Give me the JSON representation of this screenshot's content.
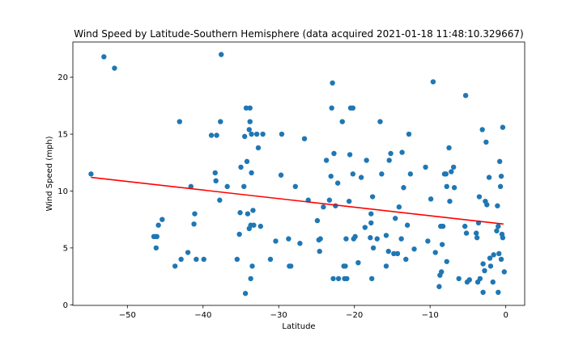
{
  "chart_data": {
    "type": "scatter",
    "title": "Wind Speed by Latitude-Southern Hemisphere (data acquired 2021-01-18 11:48:10.329667)",
    "xlabel": "Latitude",
    "ylabel": "Wind Speed (mph)",
    "xlim": [
      -57.2,
      2.5
    ],
    "ylim": [
      -0.05,
      23.1
    ],
    "xticks": [
      -50,
      -40,
      -30,
      -20,
      -10,
      0
    ],
    "yticks": [
      0,
      5,
      10,
      15,
      20
    ],
    "grid": false,
    "point_color": "#1f77b4",
    "line_color": "#ff0000",
    "regression": {
      "x": [
        -54.8,
        -0.3
      ],
      "y": [
        11.2,
        7.1
      ]
    },
    "points": [
      [
        -54.8,
        11.5
      ],
      [
        -53.1,
        21.8
      ],
      [
        -51.7,
        20.8
      ],
      [
        -46.5,
        6.0
      ],
      [
        -46.3,
        6.0
      ],
      [
        -46.2,
        5.0
      ],
      [
        -46.1,
        6.0
      ],
      [
        -45.9,
        7.0
      ],
      [
        -45.4,
        7.5
      ],
      [
        -43.7,
        3.4
      ],
      [
        -43.1,
        16.1
      ],
      [
        -42.9,
        4.0
      ],
      [
        -42.0,
        4.6
      ],
      [
        -41.6,
        10.4
      ],
      [
        -41.2,
        7.1
      ],
      [
        -41.1,
        8.0
      ],
      [
        -40.9,
        4.0
      ],
      [
        -39.9,
        4.0
      ],
      [
        -38.9,
        14.9
      ],
      [
        -38.4,
        11.6
      ],
      [
        -38.3,
        10.9
      ],
      [
        -38.2,
        14.9
      ],
      [
        -37.8,
        9.2
      ],
      [
        -37.7,
        16.1
      ],
      [
        -37.6,
        22.0
      ],
      [
        -36.8,
        10.4
      ],
      [
        -35.5,
        4.0
      ],
      [
        -35.2,
        6.2
      ],
      [
        -35.1,
        8.1
      ],
      [
        -35.0,
        12.1
      ],
      [
        -34.6,
        10.4
      ],
      [
        -34.5,
        14.8
      ],
      [
        -34.4,
        1.0
      ],
      [
        -34.3,
        17.3
      ],
      [
        -34.2,
        12.6
      ],
      [
        -34.1,
        8.0
      ],
      [
        -33.9,
        15.4
      ],
      [
        -33.9,
        6.7
      ],
      [
        -33.8,
        17.3
      ],
      [
        -33.8,
        16.1
      ],
      [
        -33.7,
        7.0
      ],
      [
        -33.7,
        2.3
      ],
      [
        -33.6,
        15.0
      ],
      [
        -33.6,
        11.6
      ],
      [
        -33.5,
        3.4
      ],
      [
        -33.4,
        8.3
      ],
      [
        -33.3,
        7.0
      ],
      [
        -32.9,
        15.0
      ],
      [
        -32.7,
        13.8
      ],
      [
        -32.4,
        6.9
      ],
      [
        -32.1,
        15.0
      ],
      [
        -31.1,
        4.0
      ],
      [
        -30.4,
        5.6
      ],
      [
        -29.7,
        11.4
      ],
      [
        -29.6,
        15.0
      ],
      [
        -28.7,
        5.8
      ],
      [
        -28.6,
        3.4
      ],
      [
        -28.4,
        3.4
      ],
      [
        -27.8,
        10.4
      ],
      [
        -27.2,
        5.4
      ],
      [
        -26.6,
        14.6
      ],
      [
        -26.1,
        9.2
      ],
      [
        -24.9,
        7.4
      ],
      [
        -24.7,
        5.7
      ],
      [
        -24.6,
        4.7
      ],
      [
        -24.5,
        5.8
      ],
      [
        -24.1,
        8.6
      ],
      [
        -23.7,
        12.7
      ],
      [
        -23.3,
        9.2
      ],
      [
        -23.1,
        11.3
      ],
      [
        -23.0,
        17.3
      ],
      [
        -22.9,
        19.5
      ],
      [
        -22.8,
        2.3
      ],
      [
        -22.7,
        13.3
      ],
      [
        -22.5,
        8.7
      ],
      [
        -22.2,
        10.7
      ],
      [
        -22.1,
        2.3
      ],
      [
        -21.6,
        16.1
      ],
      [
        -21.4,
        3.4
      ],
      [
        -21.3,
        2.3
      ],
      [
        -21.2,
        3.4
      ],
      [
        -21.1,
        5.8
      ],
      [
        -21.0,
        2.3
      ],
      [
        -20.7,
        9.1
      ],
      [
        -20.6,
        13.2
      ],
      [
        -20.5,
        17.3
      ],
      [
        -20.2,
        17.3
      ],
      [
        -20.2,
        11.5
      ],
      [
        -20.1,
        5.8
      ],
      [
        -19.9,
        6.0
      ],
      [
        -19.5,
        3.7
      ],
      [
        -19.1,
        11.2
      ],
      [
        -18.6,
        6.8
      ],
      [
        -18.4,
        12.7
      ],
      [
        -17.9,
        5.9
      ],
      [
        -17.8,
        7.2
      ],
      [
        -17.8,
        8.0
      ],
      [
        -17.7,
        2.3
      ],
      [
        -17.6,
        9.5
      ],
      [
        -17.5,
        5.0
      ],
      [
        -17.0,
        5.8
      ],
      [
        -16.6,
        16.1
      ],
      [
        -16.4,
        11.5
      ],
      [
        -15.8,
        3.4
      ],
      [
        -15.8,
        6.1
      ],
      [
        -15.5,
        4.7
      ],
      [
        -15.4,
        12.7
      ],
      [
        -15.2,
        13.3
      ],
      [
        -14.8,
        4.5
      ],
      [
        -14.6,
        7.6
      ],
      [
        -14.3,
        4.5
      ],
      [
        -14.1,
        8.6
      ],
      [
        -13.8,
        5.8
      ],
      [
        -13.7,
        13.4
      ],
      [
        -13.5,
        10.3
      ],
      [
        -13.2,
        4.0
      ],
      [
        -13.0,
        7.0
      ],
      [
        -12.8,
        15.0
      ],
      [
        -12.6,
        11.5
      ],
      [
        -12.1,
        4.9
      ],
      [
        -10.6,
        12.1
      ],
      [
        -10.3,
        5.6
      ],
      [
        -9.9,
        9.3
      ],
      [
        -9.6,
        19.6
      ],
      [
        -9.3,
        4.6
      ],
      [
        -8.8,
        1.6
      ],
      [
        -8.7,
        2.6
      ],
      [
        -8.6,
        6.9
      ],
      [
        -8.5,
        2.9
      ],
      [
        -8.4,
        5.3
      ],
      [
        -8.3,
        6.9
      ],
      [
        -8.1,
        11.5
      ],
      [
        -7.9,
        11.5
      ],
      [
        -7.8,
        3.8
      ],
      [
        -7.8,
        10.4
      ],
      [
        -7.5,
        13.8
      ],
      [
        -7.4,
        9.1
      ],
      [
        -7.2,
        11.7
      ],
      [
        -6.9,
        12.1
      ],
      [
        -6.8,
        10.3
      ],
      [
        -6.2,
        2.3
      ],
      [
        -5.4,
        6.9
      ],
      [
        -5.3,
        18.4
      ],
      [
        -5.2,
        6.3
      ],
      [
        -5.1,
        2.0
      ],
      [
        -4.8,
        2.2
      ],
      [
        -3.9,
        6.3
      ],
      [
        -3.8,
        5.9
      ],
      [
        -3.7,
        2.0
      ],
      [
        -3.6,
        7.2
      ],
      [
        -3.5,
        9.5
      ],
      [
        -3.4,
        2.3
      ],
      [
        -3.1,
        15.4
      ],
      [
        -3.0,
        3.6
      ],
      [
        -3.0,
        1.1
      ],
      [
        -2.8,
        3.0
      ],
      [
        -2.7,
        9.1
      ],
      [
        -2.6,
        14.3
      ],
      [
        -2.5,
        8.8
      ],
      [
        -2.2,
        11.2
      ],
      [
        -2.1,
        4.1
      ],
      [
        -2.0,
        3.4
      ],
      [
        -1.7,
        2.0
      ],
      [
        -1.6,
        4.4
      ],
      [
        -1.2,
        6.5
      ],
      [
        -1.1,
        8.7
      ],
      [
        -1.0,
        1.1
      ],
      [
        -1.0,
        6.9
      ],
      [
        -0.9,
        4.5
      ],
      [
        -0.8,
        12.6
      ],
      [
        -0.7,
        10.4
      ],
      [
        -0.6,
        11.3
      ],
      [
        -0.6,
        4.0
      ],
      [
        -0.5,
        6.2
      ],
      [
        -0.4,
        15.6
      ],
      [
        -0.4,
        5.9
      ],
      [
        -0.2,
        2.9
      ]
    ]
  }
}
